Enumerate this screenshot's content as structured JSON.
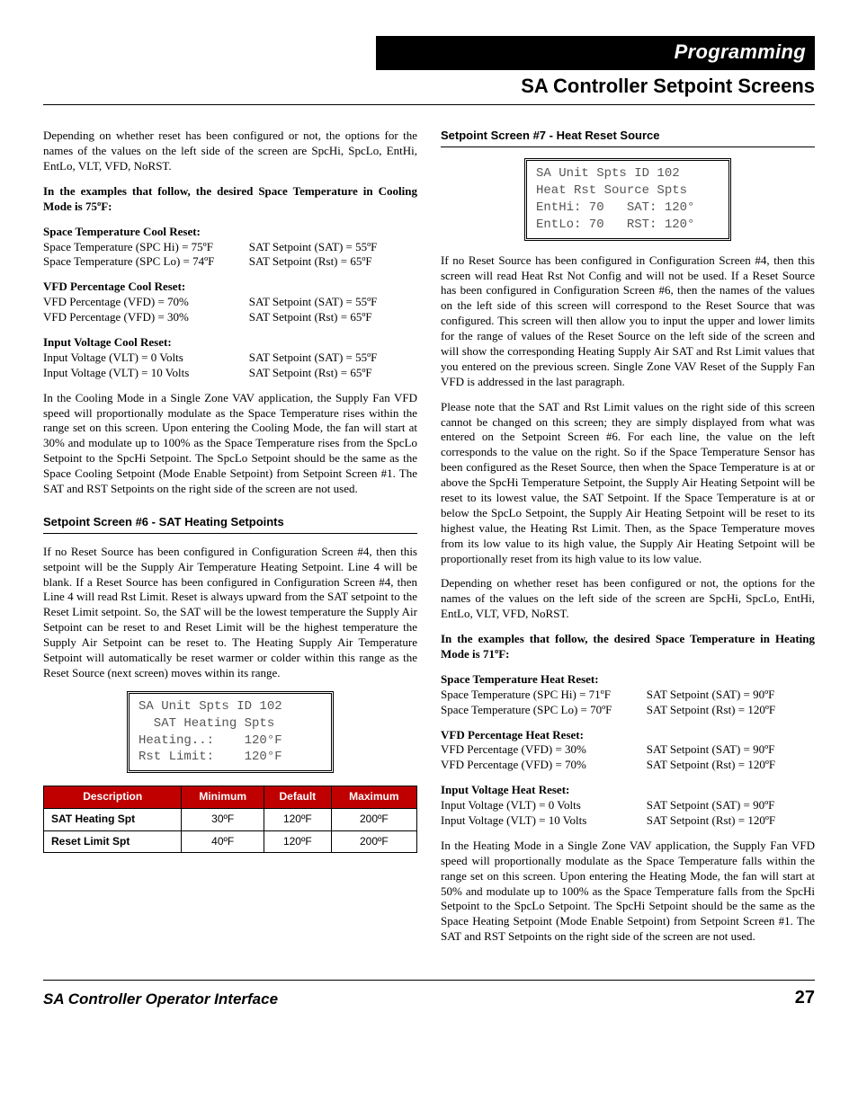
{
  "header": {
    "band": "Programming",
    "sub": "SA Controller Setpoint Screens"
  },
  "left": {
    "intro": "Depending on whether reset has been configured or not, the options for the names of the values on the left side of the screen are SpcHi, SpcLo, EntHi, EntLo, VLT, VFD, NoRST.",
    "examplesIntro": "In the examples that follow, the desired Space Temperature in Cooling Mode is 75ºF:",
    "resets": [
      {
        "title": "Space Temperature Cool Reset:",
        "rows": [
          {
            "l": "Space Temperature (SPC Hi) = 75ºF",
            "r": "SAT Setpoint (SAT) = 55ºF"
          },
          {
            "l": "Space Temperature (SPC Lo) = 74ºF",
            "r": "SAT Setpoint (Rst) = 65ºF"
          }
        ]
      },
      {
        "title": "VFD Percentage Cool Reset:",
        "rows": [
          {
            "l": "VFD Percentage (VFD) = 70%",
            "r": "SAT Setpoint (SAT) = 55ºF"
          },
          {
            "l": "VFD Percentage (VFD) = 30%",
            "r": "SAT Setpoint (Rst) = 65ºF"
          }
        ]
      },
      {
        "title": "Input Voltage Cool Reset:",
        "rows": [
          {
            "l": "Input Voltage (VLT) = 0 Volts",
            "r": "SAT Setpoint (SAT) = 55ºF"
          },
          {
            "l": "Input Voltage (VLT) = 10 Volts",
            "r": "SAT Setpoint (Rst) = 65ºF"
          }
        ]
      }
    ],
    "coolingPara": "In the Cooling Mode in a Single Zone VAV application, the Supply Fan VFD speed will proportionally modulate as the Space Temperature rises within the range set on this screen. Upon entering the Cooling Mode, the fan will start at 30% and modulate up to 100% as the Space Temperature rises from the SpcLo Setpoint to the SpcHi Setpoint.  The SpcLo Setpoint should be the same as the Space Cooling Setpoint (Mode Enable Setpoint) from Setpoint Screen #1. The SAT and RST Setpoints on the right side of the screen are not used.",
    "section6Title": "Setpoint Screen #6 - SAT Heating Setpoints",
    "section6Para": "If no Reset Source has been configured in Configuration Screen #4, then this setpoint will be the Supply Air Temperature Heating Setpoint. Line 4 will be blank. If a Reset Source has been configured in Configuration Screen #4, then Line 4 will read Rst Limit. Reset is always upward from the SAT setpoint to the Reset Limit setpoint. So, the SAT will be the lowest temperature the Supply Air Setpoint can be reset to and Reset Limit will be the highest temperature the Supply Air Setpoint can be reset to. The Heating Supply Air Temperature Setpoint will automatically be reset warmer or colder within this range as the Reset Source (next screen) moves within its range.",
    "lcd6": [
      "SA Unit Spts ID 102",
      "  SAT Heating Spts",
      "Heating..:    120°F",
      "Rst Limit:    120°F"
    ],
    "table6": {
      "headers": [
        "Description",
        "Minimum",
        "Default",
        "Maximum"
      ],
      "rows": [
        [
          "SAT Heating Spt",
          "30ºF",
          "120ºF",
          "200ºF"
        ],
        [
          "Reset Limit Spt",
          "40ºF",
          "120ºF",
          "200ºF"
        ]
      ]
    }
  },
  "right": {
    "section7Title": "Setpoint Screen #7 - Heat Reset Source",
    "lcd7": [
      "SA Unit Spts ID 102",
      "Heat Rst Source Spts",
      "EntHi: 70   SAT: 120°",
      "EntLo: 70   RST: 120°"
    ],
    "para1": "If no Reset Source has been configured in Configuration Screen #4, then this screen will read Heat Rst Not Config and will not be used.  If a Reset Source has been configured in Configuration Screen #6, then the names of the values on the left side of this screen will correspond to the Reset Source that was configured.  This screen will then allow you to input the upper and lower limits for the range of values of the Reset Source on the left side of the screen and will show the corresponding Heating Supply Air SAT and Rst Limit values that you entered on the previous screen. Single Zone VAV Reset of the Supply Fan VFD is addressed in the last paragraph.",
    "para2": "Please note that the SAT and Rst Limit values on the right side of this screen cannot be changed on this screen; they are simply displayed from what was entered on the Setpoint Screen #6. For each line, the value on the left corresponds to the value on the right. So if the Space Temperature Sensor has been configured as the Reset Source, then when the Space Temperature is at or above the SpcHi Temperature Setpoint,  the Supply Air Heating Setpoint will be reset to its lowest value, the SAT Setpoint. If the Space Temperature is at or below the SpcLo Setpoint, the Supply Air Heating Setpoint will be reset to its highest value, the Heating Rst Limit.  Then, as the Space Temperature moves from its low value to its high value, the Supply Air Heating Setpoint will be proportionally reset from its high value to its low value.",
    "para3": "Depending on whether reset has been configured or not, the options for the names of the values on the left side of the screen are SpcHi, SpcLo, EntHi, EntLo, VLT, VFD, NoRST.",
    "examplesIntro": "In the examples that follow, the desired Space Temperature in Heating Mode is 71ºF:",
    "resets": [
      {
        "title": "Space Temperature Heat Reset:",
        "rows": [
          {
            "l": "Space Temperature (SPC Hi) = 71ºF",
            "r": "SAT Setpoint (SAT) = 90ºF"
          },
          {
            "l": "Space Temperature (SPC Lo) = 70ºF",
            "r": "SAT Setpoint (Rst) = 120ºF"
          }
        ]
      },
      {
        "title": "VFD Percentage Heat Reset:",
        "rows": [
          {
            "l": "VFD Percentage (VFD) = 30%",
            "r": "SAT Setpoint (SAT) = 90ºF"
          },
          {
            "l": "VFD Percentage (VFD) = 70%",
            "r": "SAT Setpoint (Rst) = 120ºF"
          }
        ]
      },
      {
        "title": "Input Voltage Heat Reset:",
        "rows": [
          {
            "l": "Input Voltage (VLT) = 0 Volts",
            "r": "SAT Setpoint (SAT) = 90ºF"
          },
          {
            "l": "Input Voltage (VLT) = 10 Volts",
            "r": "SAT Setpoint (Rst) = 120ºF"
          }
        ]
      }
    ],
    "heatingPara": "In the Heating Mode in a Single Zone VAV application, the Supply Fan VFD speed will proportionally modulate as the Space Temperature falls within the range set on this screen. Upon entering the Heating Mode, the fan will start at 50% and modulate up to 100% as the Space Temperature falls from the SpcHi Setpoint to the SpcLo Setpoint. The SpcHi Setpoint should be the same as the Space Heating Setpoint (Mode Enable Setpoint) from Setpoint Screen #1. The SAT and RST Setpoints on the right side of the screen are not used."
  },
  "footer": {
    "title": "SA Controller Operator Interface",
    "page": "27"
  }
}
